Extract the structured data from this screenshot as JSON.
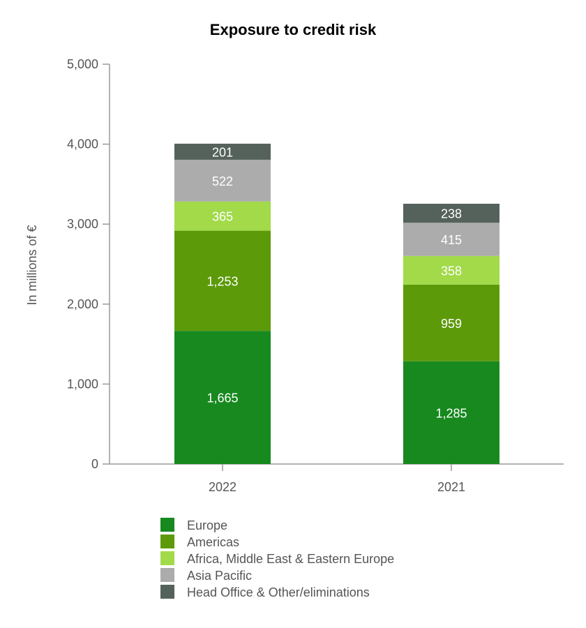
{
  "chart_data": {
    "type": "bar",
    "stacked": true,
    "title": "Exposure to credit risk",
    "ylabel": "In millions of €",
    "xlabel": "",
    "ylim": [
      0,
      5000
    ],
    "yticks": [
      0,
      1000,
      2000,
      3000,
      4000,
      5000
    ],
    "ytick_labels": [
      "0",
      "1,000",
      "2,000",
      "3,000",
      "4,000",
      "5,000"
    ],
    "categories": [
      "2022",
      "2021"
    ],
    "series": [
      {
        "name": "Europe",
        "color": "#17891f",
        "values": [
          1665,
          1285
        ],
        "labels": [
          "1,665",
          "1,285"
        ]
      },
      {
        "name": "Americas",
        "color": "#5c9a0a",
        "values": [
          1253,
          959
        ],
        "labels": [
          "1,253",
          "959"
        ]
      },
      {
        "name": "Africa, Middle East & Eastern Europe",
        "color": "#a2da4a",
        "values": [
          365,
          358
        ],
        "labels": [
          "365",
          "358"
        ]
      },
      {
        "name": "Asia Pacific",
        "color": "#acacac",
        "values": [
          522,
          415
        ],
        "labels": [
          "522",
          "415"
        ]
      },
      {
        "name": "Head Office & Other/eliminations",
        "color": "#55625b",
        "values": [
          201,
          238
        ],
        "labels": [
          "201",
          "238"
        ]
      }
    ],
    "legend": "bottom",
    "grid": false
  }
}
